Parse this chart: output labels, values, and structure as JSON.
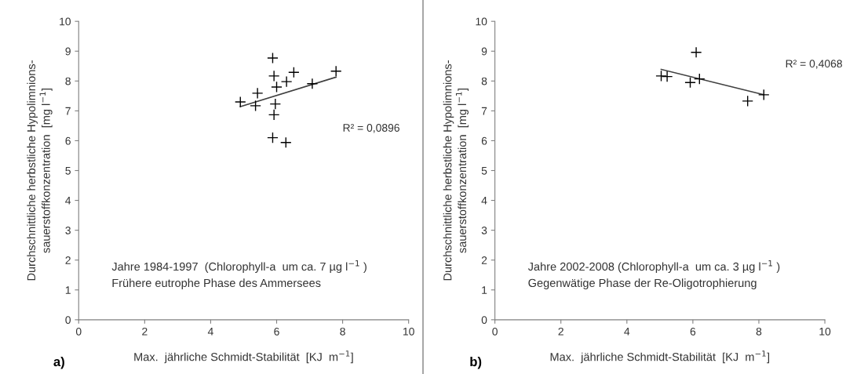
{
  "chart_data": [
    {
      "type": "scatter",
      "xlabel": "Max.  jährliche Schmidt-Stabilität  [KJ  m$^{−1}$]",
      "ylabel": "Durchschnittliche herbstliche Hypolimnions-\nsauerstoffkonzentration  [mg l$^{−1}$]",
      "xlim": [
        0,
        10
      ],
      "xticks": [
        0,
        2,
        4,
        6,
        8,
        10
      ],
      "ylim": [
        0,
        10
      ],
      "yticks": [
        0,
        1,
        2,
        3,
        4,
        5,
        6,
        7,
        8,
        9,
        10
      ],
      "grid": false,
      "legend": false,
      "series": [
        {
          "color": "#000000",
          "marker": "cross",
          "x": [
            5.88,
            5.92,
            6.52,
            6.3,
            6.0,
            7.08,
            7.8,
            5.42,
            4.9,
            5.36,
            5.96,
            5.92,
            5.88,
            6.28
          ],
          "values": [
            8.77,
            8.17,
            8.29,
            7.98,
            7.8,
            7.91,
            8.33,
            7.59,
            7.3,
            7.17,
            7.23,
            6.87,
            6.1,
            5.94
          ]
        },
        {
          "type": "line",
          "marker": "none",
          "color": "#404040",
          "x": [
            4.9,
            7.8
          ],
          "values": [
            7.14,
            8.13
          ]
        }
      ],
      "annotations": [
        "R² = 0,0896",
        "Jahre 1984-1997  (Chlorophyll-a  um ca. 7 µg l$^{−1}$ )",
        "Frühere eutrophe Phase des Ammersees",
        "a)"
      ]
    },
    {
      "type": "scatter",
      "xlabel": "Max.  jährliche Schmidt-Stabilität  [KJ  m$^{−1}$]",
      "ylabel": "Durchschnittliche herbstliche Hypolimnions-\nsauerstoffkonzentration  [mg l$^{−1}$]",
      "xlim": [
        0,
        10
      ],
      "xticks": [
        0,
        2,
        4,
        6,
        8,
        10
      ],
      "ylim": [
        0,
        10
      ],
      "yticks": [
        0,
        1,
        2,
        3,
        4,
        5,
        6,
        7,
        8,
        9,
        10
      ],
      "grid": false,
      "legend": false,
      "series": [
        {
          "color": "#000000",
          "marker": "cross",
          "x": [
            6.1,
            5.04,
            5.22,
            5.92,
            6.2,
            7.66,
            8.15
          ],
          "values": [
            8.96,
            8.17,
            8.15,
            7.95,
            8.07,
            7.33,
            7.54
          ]
        },
        {
          "type": "line",
          "marker": "none",
          "color": "#404040",
          "x": [
            5.04,
            8.15
          ],
          "values": [
            8.39,
            7.54
          ]
        }
      ],
      "annotations": [
        "R² = 0,4068",
        "Jahre 2002-2008 (Chlorophyll-a  um ca. 3 µg l$^{−1}$ )",
        "Gegenwätige Phase der Re-Oligotrophierung",
        "b)"
      ]
    }
  ]
}
